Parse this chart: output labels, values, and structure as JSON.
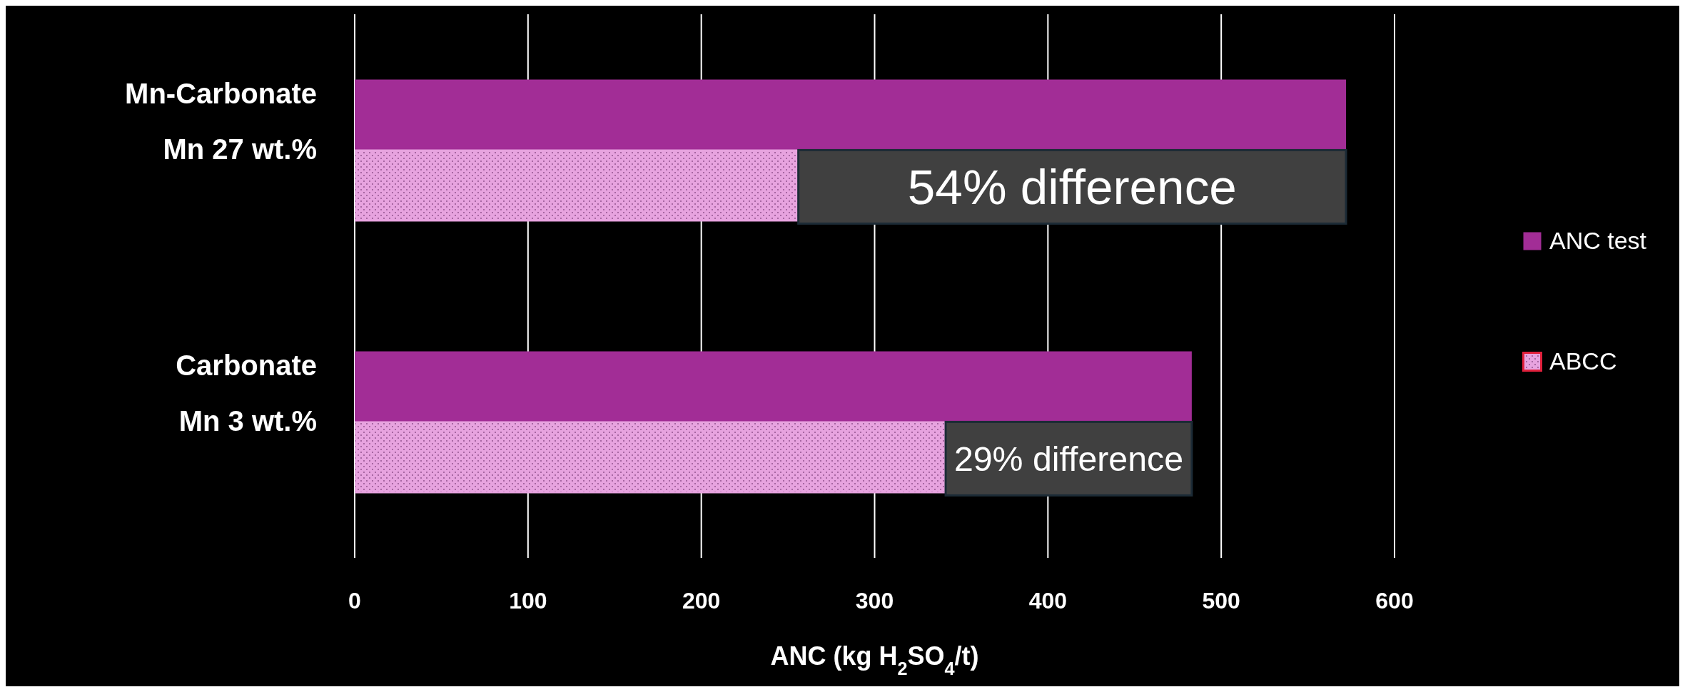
{
  "chart_data": {
    "type": "bar",
    "orientation": "horizontal",
    "categories": [
      "Mn-Carbonate\nMn 27 wt.%",
      "Carbonate\nMn 3 wt.%"
    ],
    "series": [
      {
        "name": "ANC test",
        "color": "#a22d96",
        "values": [
          572,
          483
        ]
      },
      {
        "name": "ABCC",
        "color": "#e7a3df",
        "values": [
          256,
          341
        ]
      }
    ],
    "xlim": [
      0,
      600
    ],
    "xticks": [
      0,
      100,
      200,
      300,
      400,
      500,
      600
    ],
    "xlabel": "ANC (kg H$_{2}$SO$_{4}$/t)",
    "grid": "x",
    "legend": "right",
    "annotations": [
      "54% difference",
      "29% difference"
    ]
  }
}
